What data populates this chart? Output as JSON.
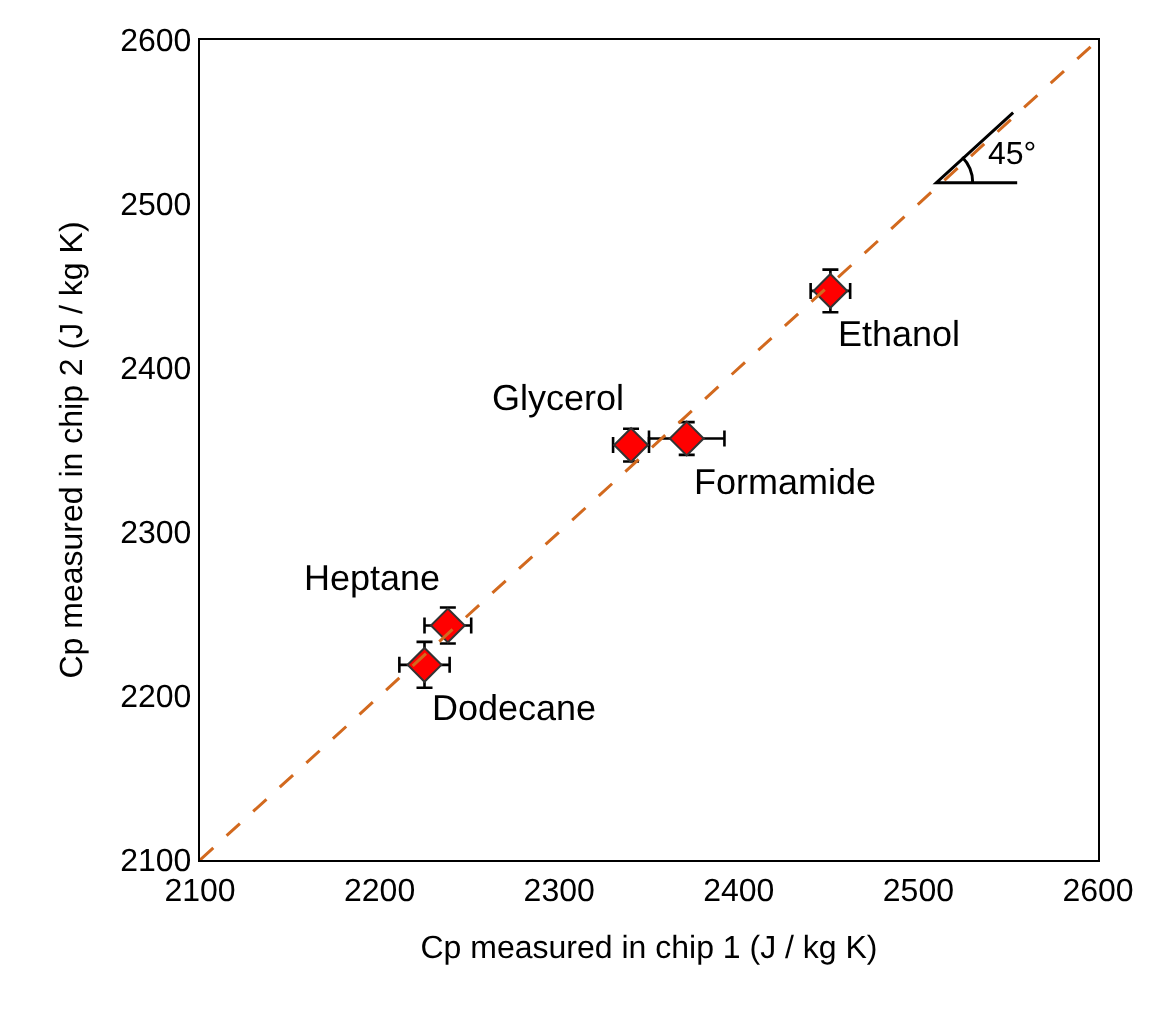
{
  "chart_data": {
    "type": "scatter",
    "xlabel": "Cp measured in chip 1 (J / kg K)",
    "ylabel": "Cp measured in chip 2 (J / kg K)",
    "xlim": [
      2100,
      2600
    ],
    "ylim": [
      2100,
      2600
    ],
    "xticks": [
      2100,
      2200,
      2300,
      2400,
      2500,
      2600
    ],
    "yticks": [
      2100,
      2200,
      2300,
      2400,
      2500,
      2600
    ],
    "grid": false,
    "marker": "diamond",
    "series": [
      {
        "color": "#ff0000",
        "x": [
          2225,
          2238,
          2340,
          2371,
          2451
        ],
        "values": [
          2219,
          2243,
          2353,
          2357,
          2447
        ],
        "errors": [
          14,
          11,
          10,
          10,
          13
        ],
        "xerrors": [
          14,
          13,
          10,
          21,
          11
        ]
      },
      {
        "type": "line",
        "color": "#d2691e",
        "line_style": "dashed",
        "marker": "none",
        "x": [
          2100,
          2600
        ],
        "values": [
          2100,
          2600
        ]
      }
    ],
    "annotations": [
      {
        "text": "Dodecane",
        "x": 2225,
        "y": 2219
      },
      {
        "text": "Heptane",
        "x": 2238,
        "y": 2243
      },
      {
        "text": "Glycerol",
        "x": 2340,
        "y": 2353
      },
      {
        "text": "Formamide",
        "x": 2371,
        "y": 2357
      },
      {
        "text": "Ethanol",
        "x": 2451,
        "y": 2447
      },
      "45°"
    ]
  }
}
